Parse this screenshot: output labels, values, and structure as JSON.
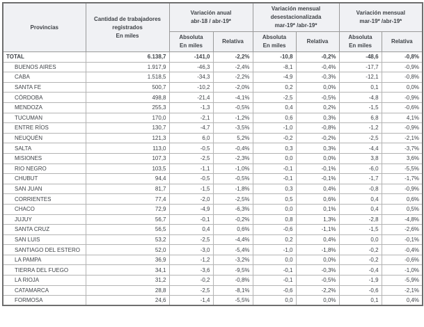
{
  "colors": {
    "header_bg": "#f0f1f4",
    "text": "#3e4247",
    "border_outer": "#6e6e6e",
    "border_inner": "#999999",
    "row_border": "#b3b3b3",
    "page_bg": "#ffffff"
  },
  "chart_data": {
    "type": "table",
    "title": "",
    "header": {
      "provincias": "Provincias",
      "cantidad": "Cantidad de trabajadores\nregistrados\nEn miles",
      "variacion_anual": "Variación anual\nabr-18 / abr-19*",
      "variacion_mensual_desest": "Variación mensual\ndesestacionalizada\nmar-19* /abr-19*",
      "variacion_mensual": "Variación mensual\nmar-19* /abr-19*",
      "absoluta": "Absoluta\nEn miles",
      "relativa": "Relativa"
    },
    "rows": [
      {
        "province": "TOTAL",
        "bold": true,
        "values": [
          "6.138,7",
          "-141,0",
          "-2,2%",
          "-10,8",
          "-0,2%",
          "-48,6",
          "-0,8%"
        ]
      },
      {
        "province": "BUENOS AIRES",
        "bold": false,
        "values": [
          "1.917,9",
          "-46,3",
          "-2,4%",
          "-8,1",
          "-0,4%",
          "-17,7",
          "-0,9%"
        ]
      },
      {
        "province": "CABA",
        "bold": false,
        "values": [
          "1.518,5",
          "-34,3",
          "-2,2%",
          "-4,9",
          "-0,3%",
          "-12,1",
          "-0,8%"
        ]
      },
      {
        "province": "SANTA FE",
        "bold": false,
        "values": [
          "500,7",
          "-10,2",
          "-2,0%",
          "0,2",
          "0,0%",
          "0,1",
          "0,0%"
        ]
      },
      {
        "province": "CÓRDOBA",
        "bold": false,
        "values": [
          "498,8",
          "-21,4",
          "-4,1%",
          "-2,5",
          "-0,5%",
          "-4,8",
          "-0,9%"
        ]
      },
      {
        "province": "MENDOZA",
        "bold": false,
        "values": [
          "255,3",
          "-1,3",
          "-0,5%",
          "0,4",
          "0,2%",
          "-1,5",
          "-0,6%"
        ]
      },
      {
        "province": "TUCUMAN",
        "bold": false,
        "values": [
          "170,0",
          "-2,1",
          "-1,2%",
          "0,6",
          "0,3%",
          "6,8",
          "4,1%"
        ]
      },
      {
        "province": "ENTRE RÍOS",
        "bold": false,
        "values": [
          "130,7",
          "-4,7",
          "-3,5%",
          "-1,0",
          "-0,8%",
          "-1,2",
          "-0,9%"
        ]
      },
      {
        "province": "NEUQUÉN",
        "bold": false,
        "values": [
          "121,3",
          "6,0",
          "5,2%",
          "-0,2",
          "-0,2%",
          "-2,5",
          "-2,1%"
        ]
      },
      {
        "province": "SALTA",
        "bold": false,
        "values": [
          "113,0",
          "-0,5",
          "-0,4%",
          "0,3",
          "0,3%",
          "-4,4",
          "-3,7%"
        ]
      },
      {
        "province": "MISIONES",
        "bold": false,
        "values": [
          "107,3",
          "-2,5",
          "-2,3%",
          "0,0",
          "0,0%",
          "3,8",
          "3,6%"
        ]
      },
      {
        "province": "RIO NEGRO",
        "bold": false,
        "values": [
          "103,5",
          "-1,1",
          "-1,0%",
          "-0,1",
          "-0,1%",
          "-6,0",
          "-5,5%"
        ]
      },
      {
        "province": "CHUBUT",
        "bold": false,
        "values": [
          "94,4",
          "-0,5",
          "-0,5%",
          "-0,1",
          "-0,1%",
          "-1,7",
          "-1,7%"
        ]
      },
      {
        "province": "SAN JUAN",
        "bold": false,
        "values": [
          "81,7",
          "-1,5",
          "-1,8%",
          "0,3",
          "0,4%",
          "-0,8",
          "-0,9%"
        ]
      },
      {
        "province": "CORRIENTES",
        "bold": false,
        "values": [
          "77,4",
          "-2,0",
          "-2,5%",
          "0,5",
          "0,6%",
          "0,4",
          "0,6%"
        ]
      },
      {
        "province": "CHACO",
        "bold": false,
        "values": [
          "72,9",
          "-4,9",
          "-6,3%",
          "0,0",
          "0,1%",
          "0,4",
          "0,5%"
        ]
      },
      {
        "province": "JUJUY",
        "bold": false,
        "values": [
          "56,7",
          "-0,1",
          "-0,2%",
          "0,8",
          "1,3%",
          "-2,8",
          "-4,8%"
        ]
      },
      {
        "province": "SANTA CRUZ",
        "bold": false,
        "values": [
          "56,5",
          "0,4",
          "0,6%",
          "-0,6",
          "-1,1%",
          "-1,5",
          "-2,6%"
        ]
      },
      {
        "province": "SAN LUIS",
        "bold": false,
        "values": [
          "53,2",
          "-2,5",
          "-4,4%",
          "0,2",
          "0,4%",
          "0,0",
          "-0,1%"
        ]
      },
      {
        "province": "SANTIAGO DEL ESTERO",
        "bold": false,
        "values": [
          "52,0",
          "-3,0",
          "-5,4%",
          "-1,0",
          "-1,8%",
          "-0,2",
          "-0,4%"
        ]
      },
      {
        "province": "LA PAMPA",
        "bold": false,
        "values": [
          "36,9",
          "-1,2",
          "-3,2%",
          "0,0",
          "0,0%",
          "-0,2",
          "-0,6%"
        ]
      },
      {
        "province": "TIERRA DEL FUEGO",
        "bold": false,
        "values": [
          "34,1",
          "-3,6",
          "-9,5%",
          "-0,1",
          "-0,3%",
          "-0,4",
          "-1,0%"
        ]
      },
      {
        "province": "LA RIOJA",
        "bold": false,
        "values": [
          "31,2",
          "-0,2",
          "-0,8%",
          "-0,1",
          "-0,5%",
          "-1,9",
          "-5,9%"
        ]
      },
      {
        "province": "CATAMARCA",
        "bold": false,
        "values": [
          "28,8",
          "-2,5",
          "-8,1%",
          "-0,6",
          "-2,2%",
          "-0,6",
          "-2,1%"
        ]
      },
      {
        "province": "FORMOSA",
        "bold": false,
        "values": [
          "24,6",
          "-1,4",
          "-5,5%",
          "0,0",
          "0,0%",
          "0,1",
          "0,4%"
        ]
      }
    ]
  }
}
